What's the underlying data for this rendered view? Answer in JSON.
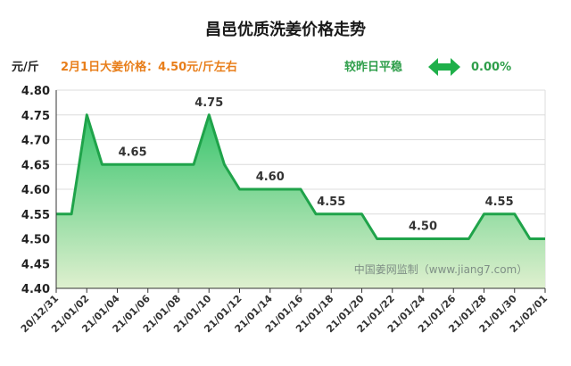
{
  "header": {
    "title": "昌邑优质洗姜价格走势",
    "unit": "元/斤",
    "price_info": "2月1日大姜价格：4.50元/斤左右",
    "compare_label": "较昨日平稳",
    "change_pct": "0.00%"
  },
  "watermark": "中国姜网监制（www.jiang7.com）",
  "colors": {
    "line": "#1fa34a",
    "fill_top": "#37c46c",
    "fill_bottom": "#dff0cf",
    "info": "#e87e1a",
    "status": "#2e9e4a",
    "arrow": "#1fb04a"
  },
  "chart_data": {
    "type": "area",
    "title": "昌邑优质洗姜价格走势",
    "ylabel": "元/斤",
    "ylim": [
      4.4,
      4.8
    ],
    "yticks": [
      "4.40",
      "4.45",
      "4.50",
      "4.55",
      "4.60",
      "4.65",
      "4.70",
      "4.75",
      "4.80"
    ],
    "grid": true,
    "x": [
      "20/12/31",
      "21/01/01",
      "21/01/02",
      "21/01/03",
      "21/01/04",
      "21/01/05",
      "21/01/06",
      "21/01/07",
      "21/01/08",
      "21/01/09",
      "21/01/10",
      "21/01/11",
      "21/01/12",
      "21/01/13",
      "21/01/14",
      "21/01/15",
      "21/01/16",
      "21/01/17",
      "21/01/18",
      "21/01/19",
      "21/01/20",
      "21/01/21",
      "21/01/22",
      "21/01/23",
      "21/01/24",
      "21/01/25",
      "21/01/26",
      "21/01/27",
      "21/01/28",
      "21/01/29",
      "21/01/30",
      "21/01/31",
      "21/02/01"
    ],
    "xticklabels": [
      "20/12/31",
      "21/01/02",
      "21/01/04",
      "21/01/06",
      "21/01/08",
      "21/01/10",
      "21/01/12",
      "21/01/14",
      "21/01/16",
      "21/01/18",
      "21/01/20",
      "21/01/22",
      "21/01/24",
      "21/01/26",
      "21/01/28",
      "21/01/30",
      "21/02/01"
    ],
    "values": [
      4.55,
      4.55,
      4.75,
      4.65,
      4.65,
      4.65,
      4.65,
      4.65,
      4.65,
      4.65,
      4.75,
      4.65,
      4.6,
      4.6,
      4.6,
      4.6,
      4.6,
      4.55,
      4.55,
      4.55,
      4.55,
      4.5,
      4.5,
      4.5,
      4.5,
      4.5,
      4.5,
      4.5,
      4.55,
      4.55,
      4.55,
      4.5,
      4.5
    ],
    "data_labels": [
      {
        "x": "21/01/05",
        "value": "4.65"
      },
      {
        "x": "21/01/10",
        "value": "4.75"
      },
      {
        "x": "21/01/14",
        "value": "4.60"
      },
      {
        "x": "21/01/18",
        "value": "4.55"
      },
      {
        "x": "21/01/24",
        "value": "4.50"
      },
      {
        "x": "21/01/29",
        "value": "4.55"
      }
    ]
  }
}
